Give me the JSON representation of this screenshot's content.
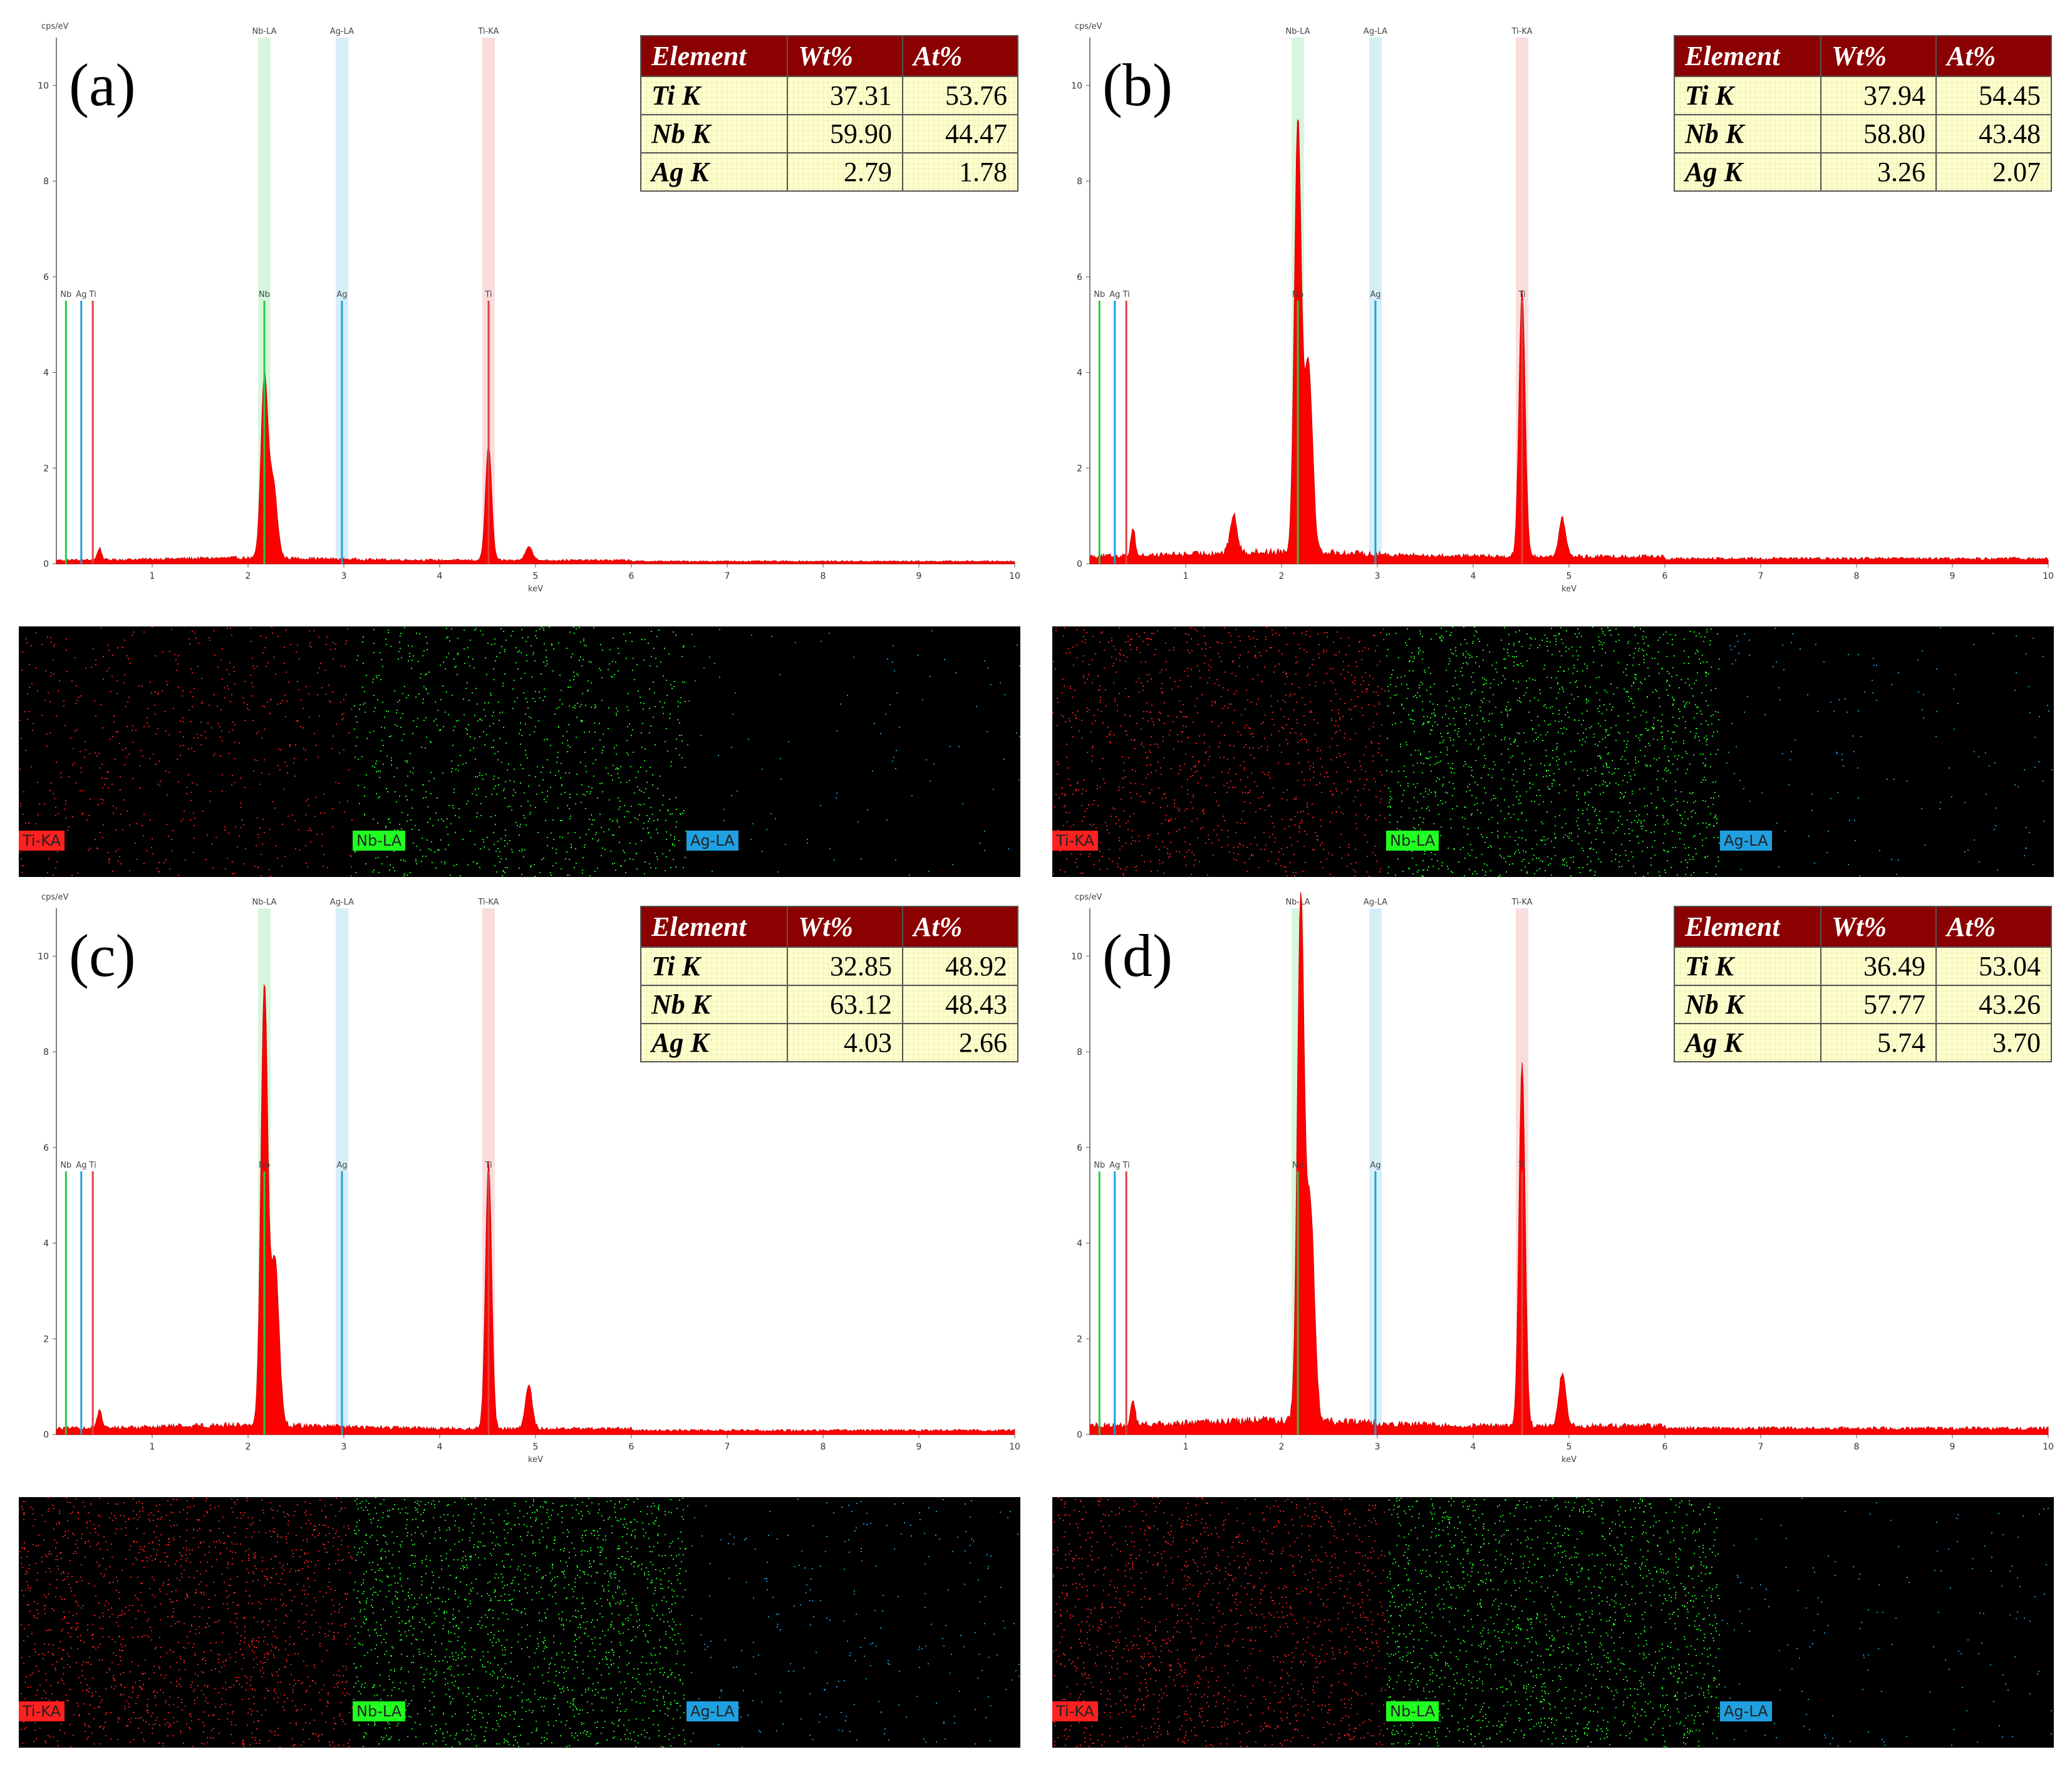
{
  "chart_data": [
    {
      "panel": "(a)",
      "type": "line",
      "ylabel": "cps/eV",
      "xlabel": "keV",
      "xlim": [
        0,
        10
      ],
      "ylim": [
        0,
        11
      ],
      "xticks": [
        "1",
        "2",
        "3",
        "4",
        "5",
        "6",
        "7",
        "8",
        "9",
        "10"
      ],
      "yticks": [
        "0",
        "2",
        "4",
        "6",
        "8",
        "10"
      ],
      "region_labels": [
        "Nb-LA",
        "Ag-LA",
        "Ti-KA"
      ],
      "regions_x": [
        2.17,
        2.98,
        4.51
      ],
      "peak_markers": [
        {
          "label": "Nb",
          "x": 0.1,
          "height": 5.5,
          "color": "#22cc44"
        },
        {
          "label": "Ag",
          "x": 0.26,
          "height": 5.5,
          "color": "#1ea0d8"
        },
        {
          "label": "Ti",
          "x": 0.38,
          "height": 5.5,
          "color": "#e04040"
        },
        {
          "label": "Nb",
          "x": 2.17,
          "height": 5.5,
          "color": "#22cc44"
        },
        {
          "label": "Ag",
          "x": 2.98,
          "height": 5.5,
          "color": "#1ea0d8"
        },
        {
          "label": "Ti",
          "x": 4.51,
          "height": 5.5,
          "color": "#e04040"
        }
      ],
      "peaks": [
        {
          "x": 2.17,
          "y": 3.7,
          "w": 0.05
        },
        {
          "x": 2.26,
          "y": 1.6,
          "w": 0.06
        },
        {
          "x": 4.51,
          "y": 2.4,
          "w": 0.045
        },
        {
          "x": 4.93,
          "y": 0.3,
          "w": 0.05
        },
        {
          "x": 0.45,
          "y": 0.25,
          "w": 0.03
        }
      ],
      "baseline": 0.12,
      "table": {
        "headers": [
          "Element",
          "Wt%",
          "At%"
        ],
        "rows": [
          [
            "Ti  K",
            "37.31",
            "53.76"
          ],
          [
            "Nb K",
            "59.90",
            "44.47"
          ],
          [
            "Ag K",
            "2.79",
            "1.78"
          ]
        ]
      },
      "maps": [
        "Ti-KA",
        "Nb-LA",
        "Ag-LA"
      ],
      "map_density": [
        0.012,
        0.02,
        0.002
      ]
    },
    {
      "panel": "(b)",
      "type": "line",
      "ylabel": "cps/eV",
      "xlabel": "keV",
      "xlim": [
        0,
        10
      ],
      "ylim": [
        0,
        11
      ],
      "xticks": [
        "1",
        "2",
        "3",
        "4",
        "5",
        "6",
        "7",
        "8",
        "9",
        "10"
      ],
      "yticks": [
        "0",
        "2",
        "4",
        "6",
        "8",
        "10"
      ],
      "region_labels": [
        "Nb-LA",
        "Ag-LA",
        "Ti-KA"
      ],
      "regions_x": [
        2.17,
        2.98,
        4.51
      ],
      "peak_markers": [
        {
          "label": "Nb",
          "x": 0.1,
          "height": 5.5,
          "color": "#22cc44"
        },
        {
          "label": "Ag",
          "x": 0.26,
          "height": 5.5,
          "color": "#1ea0d8"
        },
        {
          "label": "Ti",
          "x": 0.38,
          "height": 5.5,
          "color": "#e04040"
        },
        {
          "label": "Nb",
          "x": 2.17,
          "height": 5.5,
          "color": "#22cc44"
        },
        {
          "label": "Ag",
          "x": 2.98,
          "height": 5.5,
          "color": "#1ea0d8"
        },
        {
          "label": "Ti",
          "x": 4.51,
          "height": 5.5,
          "color": "#e04040"
        }
      ],
      "peaks": [
        {
          "x": 2.17,
          "y": 9.0,
          "w": 0.05
        },
        {
          "x": 2.28,
          "y": 4.0,
          "w": 0.06
        },
        {
          "x": 4.51,
          "y": 5.6,
          "w": 0.045
        },
        {
          "x": 4.93,
          "y": 0.8,
          "w": 0.05
        },
        {
          "x": 1.5,
          "y": 0.8,
          "w": 0.05
        },
        {
          "x": 0.45,
          "y": 0.6,
          "w": 0.03
        }
      ],
      "baseline": 0.25,
      "table": {
        "headers": [
          "Element",
          "Wt%",
          "At%"
        ],
        "rows": [
          [
            "Ti  K",
            "37.94",
            "54.45"
          ],
          [
            "Nb K",
            "58.80",
            "43.48"
          ],
          [
            "Ag K",
            "3.26",
            "2.07"
          ]
        ]
      },
      "maps": [
        "Ti-KA",
        "Nb-LA",
        "Ag-LA"
      ],
      "map_density": [
        0.022,
        0.03,
        0.003
      ]
    },
    {
      "panel": "(c)",
      "type": "line",
      "ylabel": "cps/eV",
      "xlabel": "keV",
      "xlim": [
        0,
        10
      ],
      "ylim": [
        0,
        11
      ],
      "xticks": [
        "1",
        "2",
        "3",
        "4",
        "5",
        "6",
        "7",
        "8",
        "9",
        "10"
      ],
      "yticks": [
        "0",
        "2",
        "4",
        "6",
        "8",
        "10"
      ],
      "region_labels": [
        "Nb-LA",
        "Ag-LA",
        "Ti-KA"
      ],
      "regions_x": [
        2.17,
        2.98,
        4.51
      ],
      "peak_markers": [
        {
          "label": "Nb",
          "x": 0.1,
          "height": 5.5,
          "color": "#22cc44"
        },
        {
          "label": "Ag",
          "x": 0.26,
          "height": 5.5,
          "color": "#1ea0d8"
        },
        {
          "label": "Ti",
          "x": 0.38,
          "height": 5.5,
          "color": "#e04040"
        },
        {
          "label": "Nb",
          "x": 2.17,
          "height": 5.5,
          "color": "#22cc44"
        },
        {
          "label": "Ag",
          "x": 2.98,
          "height": 5.5,
          "color": "#1ea0d8"
        },
        {
          "label": "Ti",
          "x": 4.51,
          "height": 5.5,
          "color": "#e04040"
        }
      ],
      "peaks": [
        {
          "x": 2.17,
          "y": 9.2,
          "w": 0.05
        },
        {
          "x": 2.28,
          "y": 3.5,
          "w": 0.06
        },
        {
          "x": 4.51,
          "y": 5.6,
          "w": 0.045
        },
        {
          "x": 4.93,
          "y": 0.9,
          "w": 0.05
        },
        {
          "x": 0.45,
          "y": 0.4,
          "w": 0.03
        }
      ],
      "baseline": 0.2,
      "table": {
        "headers": [
          "Element",
          "Wt%",
          "At%"
        ],
        "rows": [
          [
            "Ti  K",
            "32.85",
            "48.92"
          ],
          [
            "Nb K",
            "63.12",
            "48.43"
          ],
          [
            "Ag K",
            "4.03",
            "2.66"
          ]
        ]
      },
      "maps": [
        "Ti-KA",
        "Nb-LA",
        "Ag-LA"
      ],
      "map_density": [
        0.03,
        0.035,
        0.005
      ]
    },
    {
      "panel": "(d)",
      "type": "line",
      "ylabel": "cps/eV",
      "xlabel": "keV",
      "xlim": [
        0,
        10
      ],
      "ylim": [
        0,
        11
      ],
      "xticks": [
        "1",
        "2",
        "3",
        "4",
        "5",
        "6",
        "7",
        "8",
        "9",
        "10"
      ],
      "yticks": [
        "0",
        "2",
        "4",
        "6",
        "8",
        "10"
      ],
      "region_labels": [
        "Nb-LA",
        "Ag-LA",
        "Ti-KA"
      ],
      "regions_x": [
        2.17,
        2.98,
        4.51
      ],
      "peak_markers": [
        {
          "label": "Nb",
          "x": 0.1,
          "height": 5.5,
          "color": "#22cc44"
        },
        {
          "label": "Ag",
          "x": 0.26,
          "height": 5.5,
          "color": "#1ea0d8"
        },
        {
          "label": "Ti",
          "x": 0.38,
          "height": 5.5,
          "color": "#e04040"
        },
        {
          "label": "Nb",
          "x": 2.17,
          "height": 5.5,
          "color": "#22cc44"
        },
        {
          "label": "Ag",
          "x": 2.98,
          "height": 5.5,
          "color": "#1ea0d8"
        },
        {
          "label": "Ti",
          "x": 4.51,
          "height": 5.5,
          "color": "#e04040"
        }
      ],
      "peaks": [
        {
          "x": 2.2,
          "y": 10.8,
          "w": 0.05
        },
        {
          "x": 2.3,
          "y": 4.5,
          "w": 0.06
        },
        {
          "x": 4.51,
          "y": 7.6,
          "w": 0.045
        },
        {
          "x": 4.93,
          "y": 1.1,
          "w": 0.05
        },
        {
          "x": 0.45,
          "y": 0.5,
          "w": 0.03
        }
      ],
      "baseline": 0.3,
      "table": {
        "headers": [
          "Element",
          "Wt%",
          "At%"
        ],
        "rows": [
          [
            "Ti  K",
            "36.49",
            "53.04"
          ],
          [
            "Nb K",
            "57.77",
            "43.26"
          ],
          [
            "Ag K",
            "5.74",
            "3.70"
          ]
        ]
      },
      "maps": [
        "Ti-KA",
        "Nb-LA",
        "Ag-LA"
      ],
      "map_density": [
        0.028,
        0.032,
        0.003
      ]
    }
  ],
  "colors": {
    "spectrum_fill": "#ff0000",
    "nb": "#22cc44",
    "ag": "#1ea0d8",
    "ti": "#e04040",
    "table_header_bg": "#8b0000",
    "table_cell_bg": "#ffffcc",
    "map_ti": "#ff2020",
    "map_nb": "#20ff20",
    "map_ag": "#20a0e0"
  }
}
